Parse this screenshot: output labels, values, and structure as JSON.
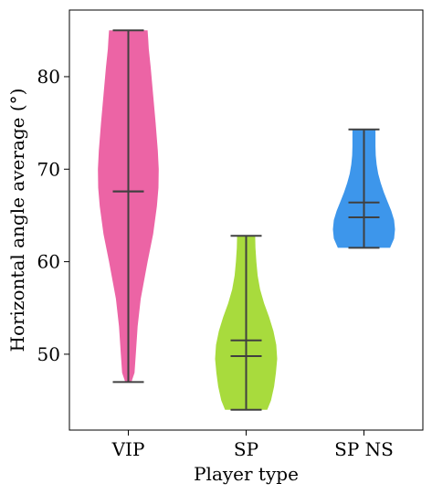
{
  "chart_data": {
    "type": "violin",
    "xlabel": "Player type",
    "ylabel": "Horizontal angle average (°)",
    "ylim": [
      41.8,
      87.2
    ],
    "yticks": [
      50,
      60,
      70,
      80
    ],
    "categories": [
      "VIP",
      "SP",
      "SP NS"
    ],
    "series": [
      {
        "category": "VIP",
        "color": "#EC64A5",
        "min": 47.0,
        "max": 85.0,
        "median": 67.6,
        "mean": 67.6,
        "density": [
          [
            47.0,
            0.1
          ],
          [
            48.0,
            0.2
          ],
          [
            50.0,
            0.24
          ],
          [
            53.0,
            0.3
          ],
          [
            56.0,
            0.4
          ],
          [
            60.0,
            0.62
          ],
          [
            63.0,
            0.8
          ],
          [
            66.0,
            0.92
          ],
          [
            68.0,
            0.97
          ],
          [
            70.0,
            0.98
          ],
          [
            72.0,
            0.95
          ],
          [
            75.0,
            0.88
          ],
          [
            78.0,
            0.8
          ],
          [
            81.0,
            0.72
          ],
          [
            83.0,
            0.66
          ],
          [
            84.0,
            0.64
          ],
          [
            85.0,
            0.62
          ]
        ]
      },
      {
        "category": "SP",
        "color": "#A8DB3D",
        "min": 44.0,
        "max": 62.8,
        "median": 49.8,
        "mean": 51.5,
        "density": [
          [
            44.0,
            0.68
          ],
          [
            45.0,
            0.8
          ],
          [
            46.5,
            0.9
          ],
          [
            48.0,
            0.96
          ],
          [
            49.5,
            1.0
          ],
          [
            51.0,
            0.97
          ],
          [
            52.5,
            0.88
          ],
          [
            54.0,
            0.74
          ],
          [
            55.5,
            0.58
          ],
          [
            57.0,
            0.45
          ],
          [
            58.5,
            0.37
          ],
          [
            60.0,
            0.33
          ],
          [
            61.5,
            0.3
          ],
          [
            62.8,
            0.29
          ]
        ]
      },
      {
        "category": "SP NS",
        "color": "#3D96EB",
        "min": 61.5,
        "max": 74.3,
        "median": 64.8,
        "mean": 66.4,
        "density": [
          [
            61.5,
            0.84
          ],
          [
            62.5,
            0.97
          ],
          [
            63.5,
            1.0
          ],
          [
            64.5,
            0.97
          ],
          [
            65.5,
            0.88
          ],
          [
            66.5,
            0.76
          ],
          [
            67.5,
            0.64
          ],
          [
            68.5,
            0.54
          ],
          [
            69.5,
            0.46
          ],
          [
            70.5,
            0.41
          ],
          [
            71.5,
            0.38
          ],
          [
            72.5,
            0.37
          ],
          [
            73.5,
            0.37
          ],
          [
            74.3,
            0.37
          ]
        ]
      }
    ]
  }
}
